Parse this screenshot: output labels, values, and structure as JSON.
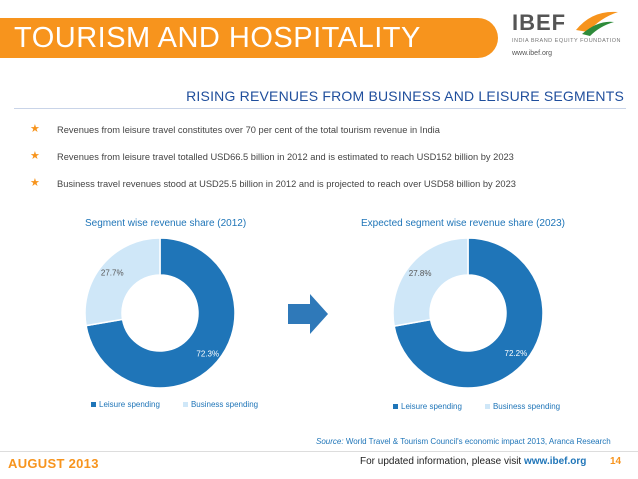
{
  "header": {
    "title": "TOURISM AND HOSPITALITY",
    "logo": {
      "word": "IBEF",
      "tagline": "INDIA BRAND EQUITY FOUNDATION",
      "url": "www.ibef.org"
    }
  },
  "subtitle": "RISING REVENUES FROM BUSINESS AND LEISURE SEGMENTS",
  "bullets": [
    "Revenues from leisure travel constitutes over 70 per cent of the total tourism revenue in India",
    "Revenues from leisure travel totalled USD66.5 billion in 2012 and is estimated to reach USD152 billion by 2023",
    "Business travel revenues stood at USD25.5 billion in 2012 and is projected to reach over USD58 billion by 2023"
  ],
  "colors": {
    "leisure": "#1f75b8",
    "business": "#cfe7f8",
    "accent": "#f7941d",
    "subtitle": "#1f4e9c"
  },
  "chart_data": [
    {
      "type": "pie",
      "title": "Segment wise revenue share (2012)",
      "categories": [
        "Leisure spending",
        "Business spending"
      ],
      "values": [
        72.3,
        27.7
      ],
      "labels": [
        "72.3%",
        "27.7%"
      ],
      "legend": "bottom"
    },
    {
      "type": "pie",
      "title": "Expected segment wise revenue share (2023)",
      "categories": [
        "Leisure spending",
        "Business spending"
      ],
      "values": [
        72.2,
        27.8
      ],
      "labels": [
        "72.2%",
        "27.8%"
      ],
      "legend": "bottom"
    }
  ],
  "source": {
    "label": "Source:",
    "text": "World Travel & Tourism Council's economic impact 2013, Aranca Research"
  },
  "footer": {
    "date": "AUGUST 2013",
    "info_text": "For updated information, please visit",
    "info_url": "www.ibef.org",
    "page": "14"
  }
}
